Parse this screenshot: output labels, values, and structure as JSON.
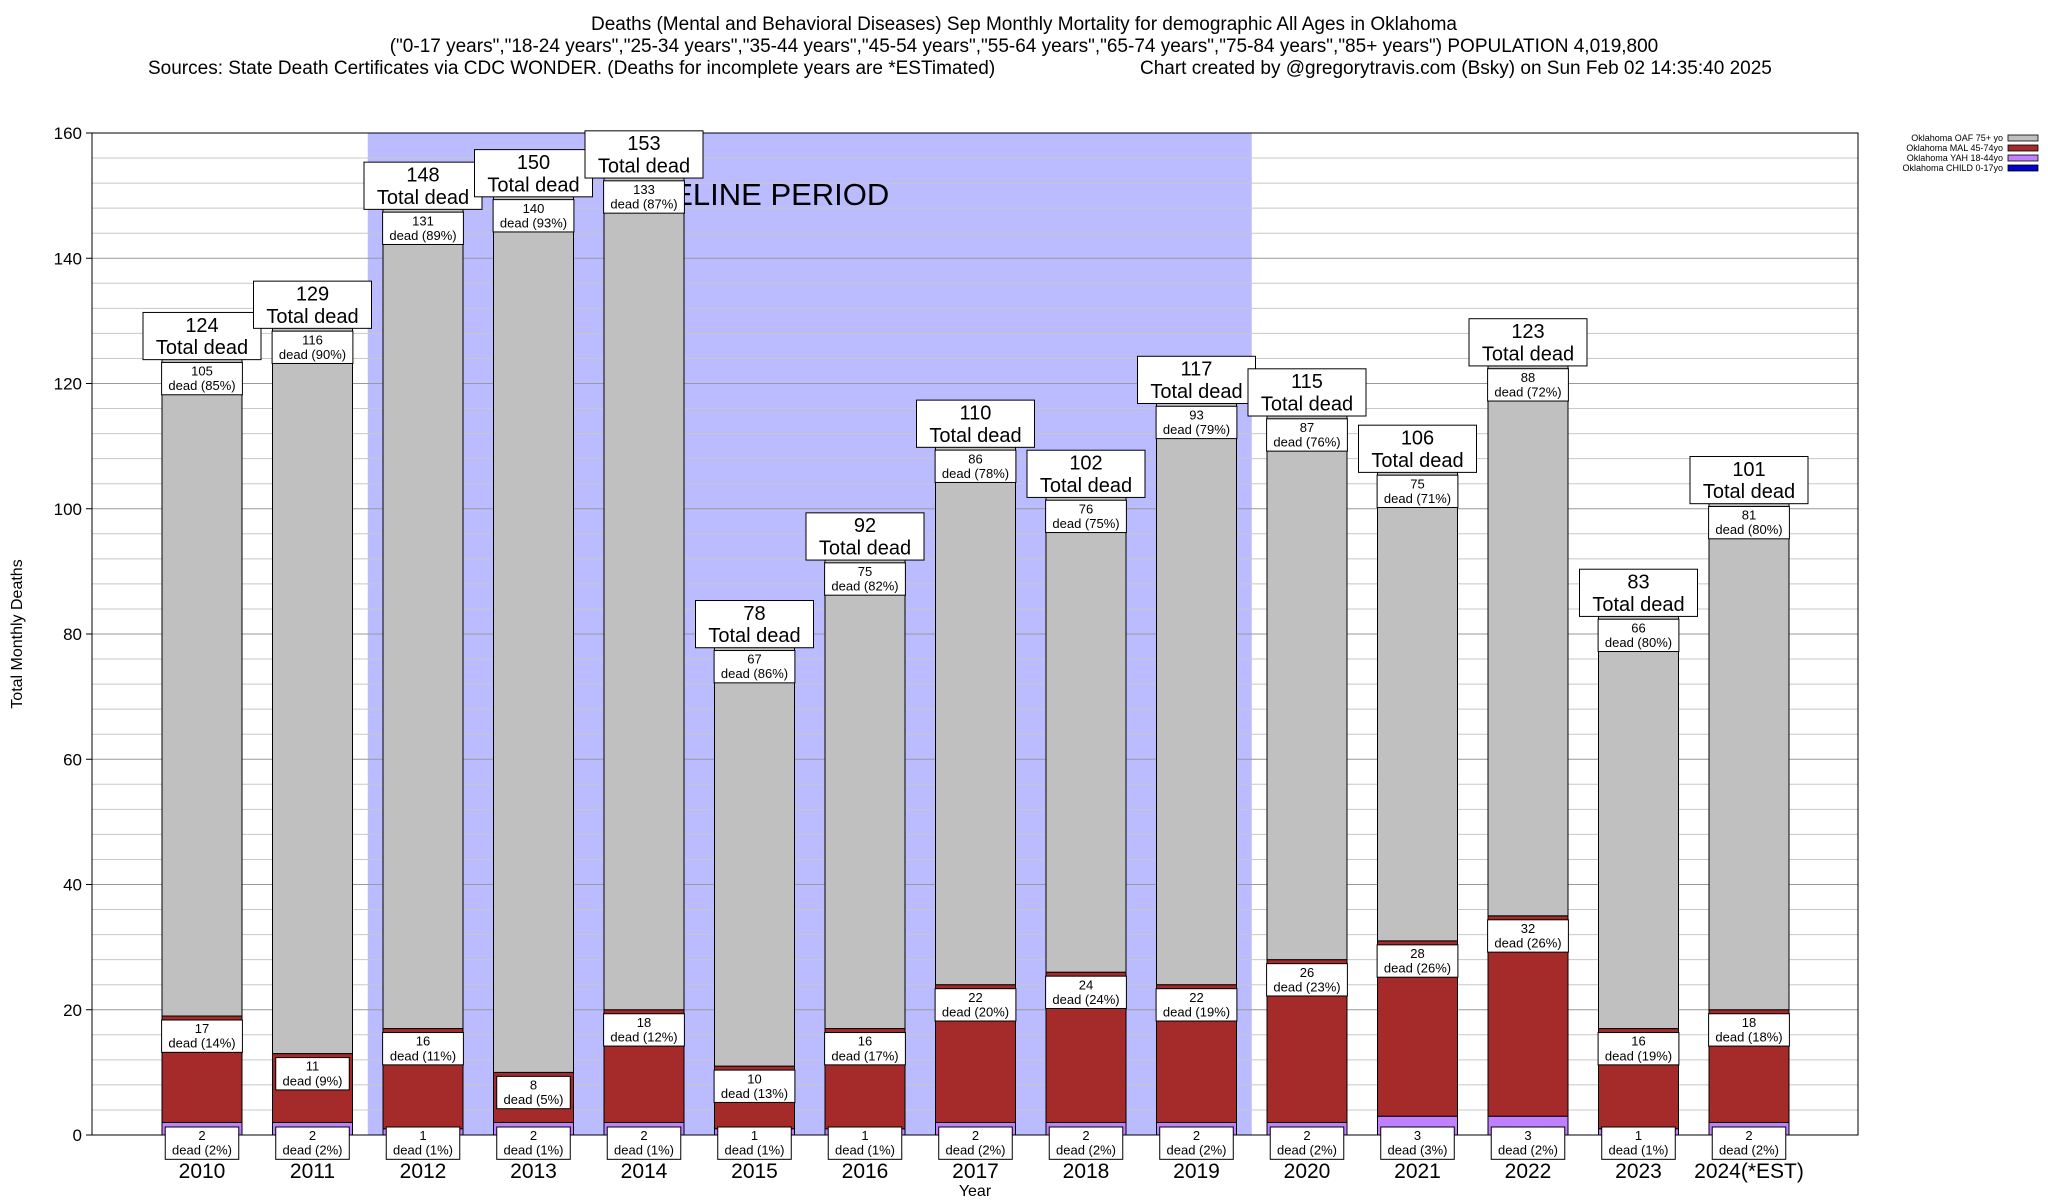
{
  "header": {
    "title": "Deaths (Mental and Behavioral Diseases) Sep Monthly Mortality for demographic All Ages in Oklahoma",
    "subtitle": "(\"0-17 years\",\"18-24 years\",\"25-34 years\",\"35-44 years\",\"45-54 years\",\"55-64 years\",\"65-74 years\",\"75-84 years\",\"85+ years\") POPULATION 4,019,800",
    "sources": "Sources: State Death Certificates via CDC WONDER. (Deaths for incomplete years are *ESTimated)",
    "credit": "Chart created by @gregorytravis.com (Bsky) on Sun Feb 02 14:35:40 2025"
  },
  "chart_data": {
    "type": "bar",
    "stacked": true,
    "xlabel": "Year",
    "ylabel": "Total Monthly Deaths",
    "ylim": [
      0,
      160
    ],
    "yticks": [
      0,
      20,
      40,
      60,
      80,
      100,
      120,
      140,
      160
    ],
    "grid": true,
    "legend_position": "top-right",
    "categories": [
      "2010",
      "2011",
      "2012",
      "2013",
      "2014",
      "2015",
      "2016",
      "2017",
      "2018",
      "2019",
      "2020",
      "2021",
      "2022",
      "2023",
      "2024(*EST)"
    ],
    "totals": [
      124,
      129,
      148,
      150,
      153,
      78,
      92,
      110,
      102,
      117,
      115,
      106,
      123,
      83,
      101
    ],
    "total_suffix": "Total dead",
    "segment_suffix": "dead",
    "baseline": {
      "label": "BASELINE PERIOD",
      "from": "2012",
      "to": "2019",
      "color": "#bbbbff"
    },
    "series": [
      {
        "name": "Oklahoma CHILD 0-17yo",
        "color": "#0000cc",
        "values": [
          0,
          0,
          0,
          0,
          0,
          0,
          0,
          0,
          0,
          0,
          0,
          0,
          0,
          0,
          0
        ]
      },
      {
        "name": "Oklahoma YAH 18-44yo",
        "color": "#c080ff",
        "values": [
          2,
          2,
          1,
          2,
          2,
          1,
          1,
          2,
          2,
          2,
          2,
          3,
          3,
          1,
          2
        ],
        "pct": [
          "2%",
          "2%",
          "1%",
          "1%",
          "1%",
          "1%",
          "1%",
          "2%",
          "2%",
          "2%",
          "2%",
          "3%",
          "2%",
          "1%",
          "2%"
        ]
      },
      {
        "name": "Oklahoma MAL 45-74yo",
        "color": "#a52a2a",
        "values": [
          17,
          11,
          16,
          8,
          18,
          10,
          16,
          22,
          24,
          22,
          26,
          28,
          32,
          16,
          18
        ],
        "pct": [
          "14%",
          "9%",
          "11%",
          "5%",
          "12%",
          "13%",
          "17%",
          "20%",
          "24%",
          "19%",
          "23%",
          "26%",
          "26%",
          "19%",
          "18%"
        ]
      },
      {
        "name": "Oklahoma OAF 75+ yo",
        "color": "#c0c0c0",
        "values": [
          105,
          116,
          131,
          140,
          133,
          67,
          75,
          86,
          76,
          93,
          87,
          75,
          88,
          66,
          81
        ],
        "pct": [
          "85%",
          "90%",
          "89%",
          "93%",
          "87%",
          "86%",
          "82%",
          "78%",
          "75%",
          "79%",
          "76%",
          "71%",
          "72%",
          "80%",
          "80%"
        ]
      }
    ],
    "legend_order": [
      "Oklahoma OAF 75+ yo",
      "Oklahoma MAL 45-74yo",
      "Oklahoma YAH 18-44yo",
      "Oklahoma CHILD 0-17yo"
    ]
  }
}
